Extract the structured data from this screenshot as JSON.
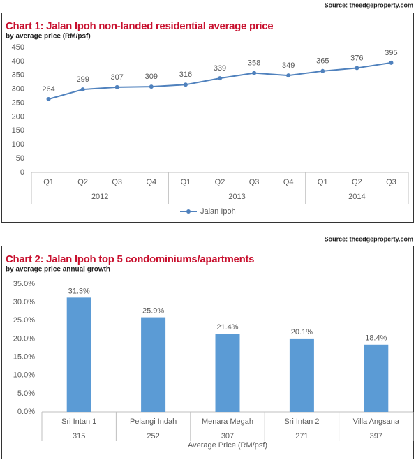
{
  "chart_data": [
    {
      "type": "line",
      "source": "Source: theedgeproperty.com",
      "title": "Chart 1: Jalan Ipoh non-landed residential average price",
      "subtitle": "by average price (RM/psf)",
      "groups": [
        {
          "label": "2012",
          "categories": [
            "Q1",
            "Q2",
            "Q3",
            "Q4"
          ]
        },
        {
          "label": "2013",
          "categories": [
            "Q1",
            "Q2",
            "Q3",
            "Q4"
          ]
        },
        {
          "label": "2014",
          "categories": [
            "Q1",
            "Q2",
            "Q3"
          ]
        }
      ],
      "series": [
        {
          "name": "Jalan Ipoh",
          "color": "#4f81bd",
          "values": [
            264,
            299,
            307,
            309,
            316,
            339,
            358,
            349,
            365,
            376,
            395
          ]
        }
      ],
      "ylim": [
        0,
        450
      ],
      "yticks": [
        0,
        50,
        100,
        150,
        200,
        250,
        300,
        350,
        400,
        450
      ],
      "grid": false,
      "legend": "bottom"
    },
    {
      "type": "bar",
      "source": "Source: theedgeproperty.com",
      "title": "Chart 2: Jalan Ipoh top 5 condominiums/apartments",
      "subtitle": "by average price annual growth",
      "categories": [
        "Sri Intan 1",
        "Pelangi Indah",
        "Menara Megah",
        "Sri Intan 2",
        "Villa Angsana"
      ],
      "prices": [
        315,
        252,
        307,
        271,
        397
      ],
      "xlabel": "Average Price (RM/psf)",
      "values": [
        31.3,
        25.9,
        21.4,
        20.1,
        18.4
      ],
      "value_labels": [
        "31.3%",
        "25.9%",
        "21.4%",
        "20.1%",
        "18.4%"
      ],
      "color": "#5b9bd5",
      "ylim": [
        0,
        35
      ],
      "yticks": [
        {
          "value": 0,
          "label": "0.0%"
        },
        {
          "value": 5,
          "label": "5.0%"
        },
        {
          "value": 10,
          "label": "10.0%"
        },
        {
          "value": 15,
          "label": "15.0%"
        },
        {
          "value": 20,
          "label": "20.0%"
        },
        {
          "value": 25,
          "label": "25.0%"
        },
        {
          "value": 30,
          "label": "30.0%"
        },
        {
          "value": 35,
          "label": "35.0%"
        }
      ],
      "grid": false
    }
  ]
}
